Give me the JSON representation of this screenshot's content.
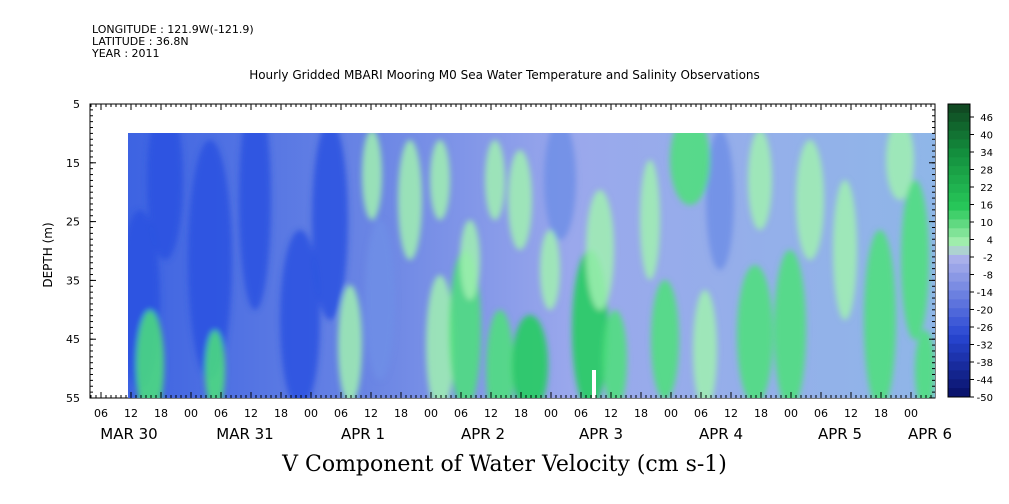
{
  "header": {
    "longitude": "LONGITUDE : 121.9W(-121.9)",
    "latitude": "LATITUDE : 36.8N",
    "year": "YEAR : 2011"
  },
  "chart_data": {
    "type": "heatmap",
    "title": "Hourly Gridded MBARI Mooring M0 Sea Water Temperature and Salinity Observations",
    "xlabel": "V Component of Water Velocity (cm s-1)",
    "ylabel": "DEPTH (m)",
    "y_ticks": [
      5,
      15,
      25,
      35,
      45,
      55
    ],
    "ylim": [
      5,
      55
    ],
    "x_hour_ticks": [
      "06",
      "12",
      "18",
      "00",
      "06",
      "12",
      "18",
      "00",
      "06",
      "12",
      "18",
      "00",
      "06",
      "12",
      "18",
      "00",
      "06",
      "12",
      "18",
      "00",
      "06",
      "12",
      "18",
      "00",
      "06",
      "12",
      "18",
      "00",
      "06",
      "12",
      "18",
      "00"
    ],
    "x_day_labels": [
      "MAR 30",
      "MAR 31",
      "APR  1",
      "APR  2",
      "APR  3",
      "APR  4",
      "APR  5",
      "APR  6"
    ],
    "colorbar_levels": [
      46,
      40,
      34,
      28,
      22,
      16,
      10,
      4,
      -2,
      -8,
      -14,
      -20,
      -26,
      -32,
      -38,
      -44,
      -50
    ],
    "data_depth_range": [
      10,
      55
    ],
    "data_start_hour": "MAR 30 12",
    "data_end": "APR 6",
    "colors": {
      "strong_negative": "#2a52e0",
      "negative": "#6f8ee6",
      "near_zero_negative": "#aab2ee",
      "near_zero_positive": "#a0f0b0",
      "positive": "#4ee07a",
      "strong_positive": "#1fcf5a"
    }
  }
}
